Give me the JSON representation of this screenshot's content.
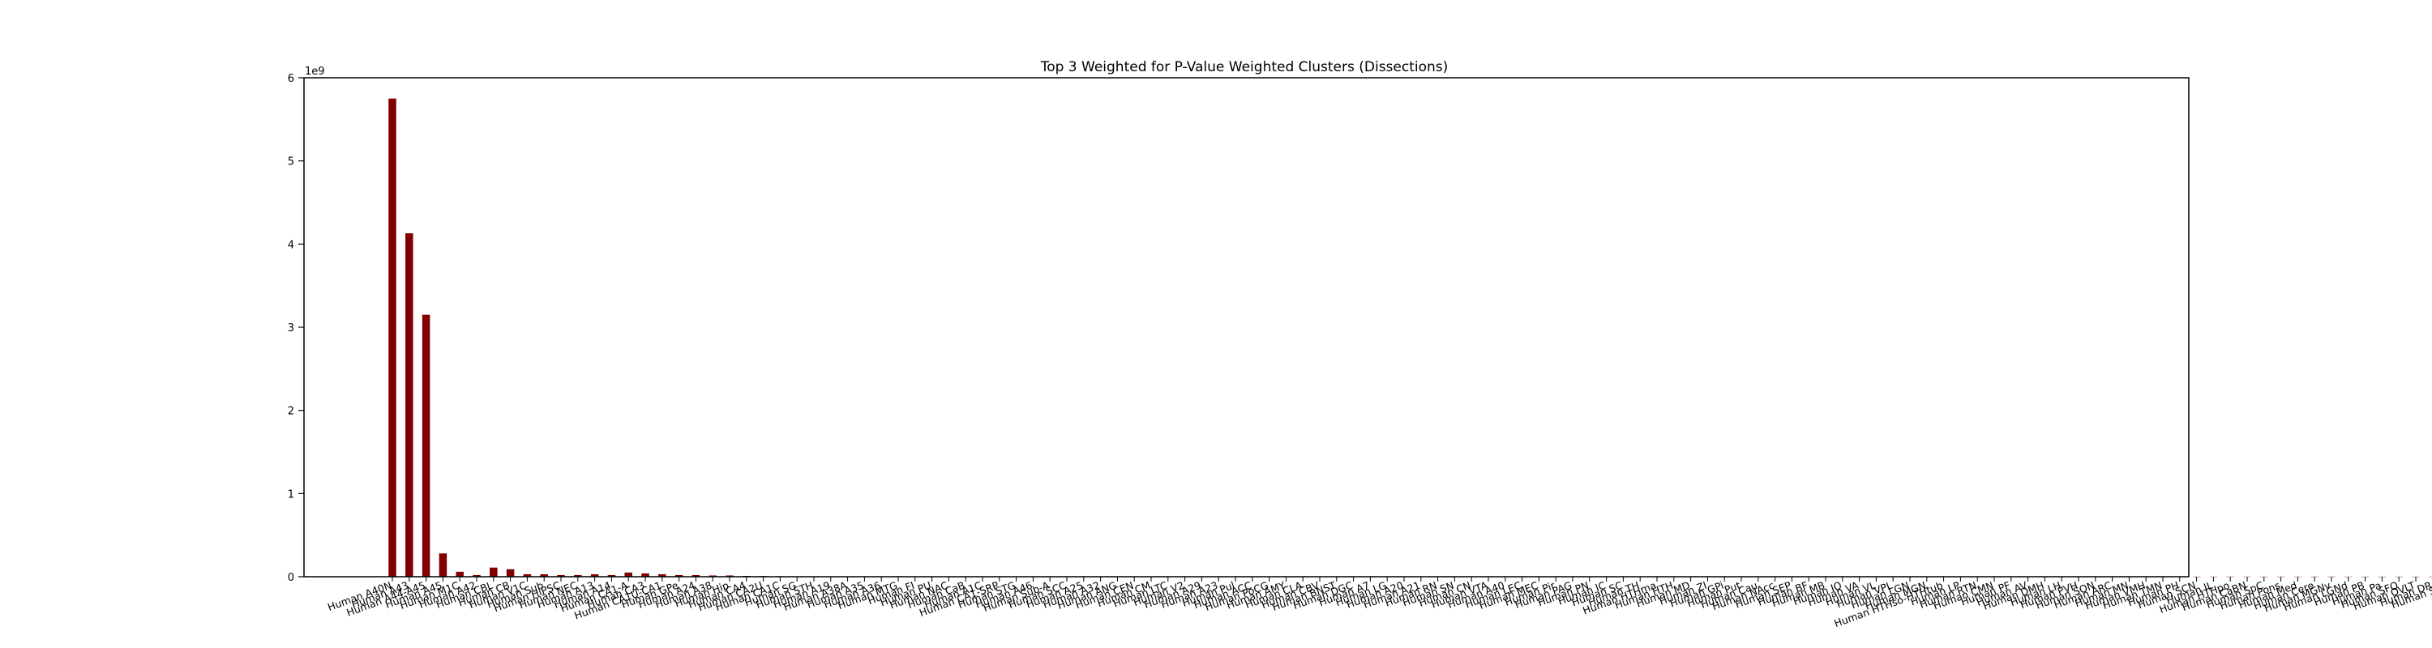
{
  "chart_data": {
    "type": "bar",
    "title": "Top 3 Weighted for P-Value Weighted Clusters (Dissections)",
    "xlabel": "",
    "ylabel": "",
    "y_offset_label": "1e9",
    "ylim": [
      0,
      6
    ],
    "y_ticks": [
      0,
      1,
      2,
      3,
      4,
      5,
      6
    ],
    "grid": false,
    "bar_color": "#800000",
    "categories": [
      "Human A40N",
      "Human A43",
      "Human A44-A45",
      "Human A45",
      "Human M1C",
      "Human A42",
      "Human CBL",
      "Human CB",
      "Human V1C",
      "Human Sub",
      "Human HiPSC",
      "Human NEC",
      "Human A13",
      "Human A14",
      "Human CA1-A",
      "Human CA3",
      "Human CA1U-CA1",
      "Human GPe",
      "Human A24",
      "Human A38",
      "Human Hip",
      "Human CA4",
      "Human CA2U",
      "Human CA1C",
      "Human SG",
      "Human STH",
      "Human A19",
      "Human A38A",
      "Human A35",
      "Human A36",
      "Human MTG",
      "Human FI",
      "Human PU",
      "Human NAC",
      "Human CaB",
      "Human A1C",
      "Human CA1-SRP",
      "Human STG",
      "Human A46",
      "Human Sub-A",
      "Human SCC",
      "Human A25",
      "Human A32",
      "Human ANG",
      "Human CEN",
      "Human CM",
      "Human LTC",
      "Human V2",
      "Human A29",
      "Human A23",
      "Human Pul",
      "Human ACC",
      "Human PoCG",
      "Human AMY",
      "Human CLA",
      "Human CBV",
      "Human BNST",
      "Human DGC",
      "Human A7",
      "Human LG",
      "Human A20",
      "Human A21",
      "Human RN",
      "Human SN",
      "Human CN",
      "Human VTA",
      "Human A40",
      "Human LEC",
      "Human MEC",
      "Human Pir",
      "Human PAG",
      "Human PN",
      "Human IC",
      "Human SC",
      "Human TH",
      "Human HTHma",
      "Human HTH",
      "Human MD",
      "Human ZI",
      "Human GPi",
      "Human Put",
      "Human Cau",
      "Human NAcc",
      "Human SEP",
      "Human BF",
      "Human MB",
      "Human IO",
      "Human VA",
      "Human VL",
      "Human VPL",
      "Human LGN",
      "Human MGN",
      "Human HTHso-HTHtub",
      "Human LP",
      "Human RTN",
      "Human CMN",
      "Human PF",
      "Human AV",
      "Human DMH",
      "Human LH",
      "Human PVH",
      "Human SON",
      "Human ARC",
      "Human MN",
      "Human VMH",
      "Human TMN",
      "Human PH",
      "Human SCN",
      "Human IL",
      "Human HTHpo",
      "Human CaBN",
      "Human SpC",
      "Human Pons",
      "Human Med",
      "Human Cere",
      "Human MGNv",
      "Human LGNd",
      "Human PB",
      "Human Pa",
      "Human SFO",
      "Human OVLT",
      "Human DR",
      "Human STG"
    ],
    "values": [
      5.75,
      4.13,
      3.15,
      0.28,
      0.06,
      0.02,
      0.11,
      0.09,
      0.03,
      0.03,
      0.02,
      0.02,
      0.03,
      0.02,
      0.05,
      0.04,
      0.03,
      0.02,
      0.02,
      0.015,
      0.015,
      0.01,
      0.008,
      0.006,
      0.005,
      0.004,
      0.004,
      0.003,
      0.003,
      0.003,
      0.006,
      0.002,
      0.002,
      0.002,
      0.002,
      0.002,
      0.002,
      0.002,
      0.002,
      0.002,
      0.001,
      0.001,
      0.001,
      0.001,
      0.001,
      0.001,
      0.001,
      0.001,
      0.001,
      0.001,
      0.001,
      0.001,
      0.001,
      0.001,
      0.001,
      0.001,
      0.001,
      0.001,
      0.001,
      0.001,
      0.001,
      0.001,
      0.001,
      0.001,
      0.001,
      0.001,
      0.001,
      0.001,
      0.001,
      0.001,
      0.001,
      0.001,
      0.001,
      0.001,
      0.001,
      0.001,
      0.001,
      0.001,
      0.001,
      0.001,
      0.001,
      0.001,
      0.001,
      0.001,
      0.001,
      0.001,
      0.001,
      0.001,
      0.001,
      0.001,
      0.001,
      0.001,
      0.001,
      0.001,
      0.001,
      0.001,
      0.001,
      0.001,
      0.001,
      0.001,
      0.001,
      0.001,
      0.001,
      0.001,
      0.001,
      0.001,
      0.001,
      0.001,
      0.001,
      0.001,
      0.001,
      0.001,
      0.001,
      0.001,
      0.001,
      0.001,
      0.001,
      0.001,
      0.001,
      0.001,
      0.001,
      0.001,
      0.001
    ]
  }
}
